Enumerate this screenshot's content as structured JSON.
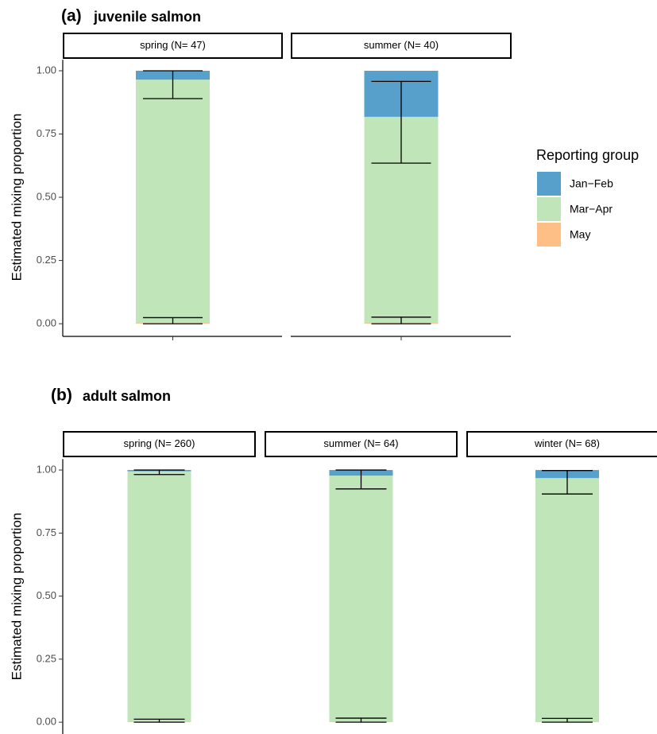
{
  "chart_data": [
    {
      "type": "bar",
      "tag": "(a)",
      "title": "juvenile salmon",
      "ylabel": "Estimated mixing proportion",
      "categories": [
        "spring (N= 47)",
        "summer (N= 40)"
      ],
      "legend_title": "Reporting group",
      "series": [
        {
          "name": "Jan−Feb",
          "color": "#56a0cb",
          "values": [
            0.035,
            0.182
          ]
        },
        {
          "name": "Mar−Apr",
          "color": "#bfe5b9",
          "values": [
            0.962,
            0.815
          ],
          "ci_low": [
            0.89,
            0.635
          ],
          "ci_high": [
            1.0,
            0.958
          ]
        },
        {
          "name": "May",
          "color": "#fdbf86",
          "values": [
            0.003,
            0.003
          ],
          "ci_low": [
            0,
            0
          ],
          "ci_high": [
            0.024,
            0.026
          ]
        }
      ],
      "ylim": [
        -0.05,
        1.05
      ],
      "yticks": [
        {
          "value": 0,
          "label": "0.00"
        },
        0.25,
        {
          "value": 0.5,
          "label": "0.50"
        },
        0.75,
        {
          "value": 1,
          "label": "1.00"
        }
      ]
    },
    {
      "type": "bar",
      "tag": "(b)",
      "title": "adult salmon",
      "ylabel": "Estimated mixing proportion",
      "categories": [
        "spring (N= 260)",
        "summer (N= 64)",
        "winter (N= 68)"
      ],
      "series": [
        {
          "color": "#56a0cb",
          "values": [
            0.005,
            0.022,
            0.032
          ]
        },
        {
          "color": "#bfe5b9",
          "values": [
            0.992,
            0.975,
            0.965
          ],
          "ci_low": [
            0.982,
            0.925,
            0.905
          ],
          "ci_high": [
            1.0,
            1.0,
            0.998
          ]
        },
        {
          "color": "#fdbf86",
          "values": [
            0.003,
            0.003,
            0.003
          ],
          "ci_low": [
            0,
            0,
            0
          ],
          "ci_high": [
            0.012,
            0.016,
            0.015
          ]
        }
      ],
      "ylim": [
        -0.05,
        1.05
      ],
      "yticks": [
        {
          "value": 0,
          "label": "0.00"
        },
        0.25,
        {
          "value": 0.5,
          "label": "0.50"
        },
        0.75,
        {
          "value": 1,
          "label": "1.00"
        }
      ]
    }
  ]
}
